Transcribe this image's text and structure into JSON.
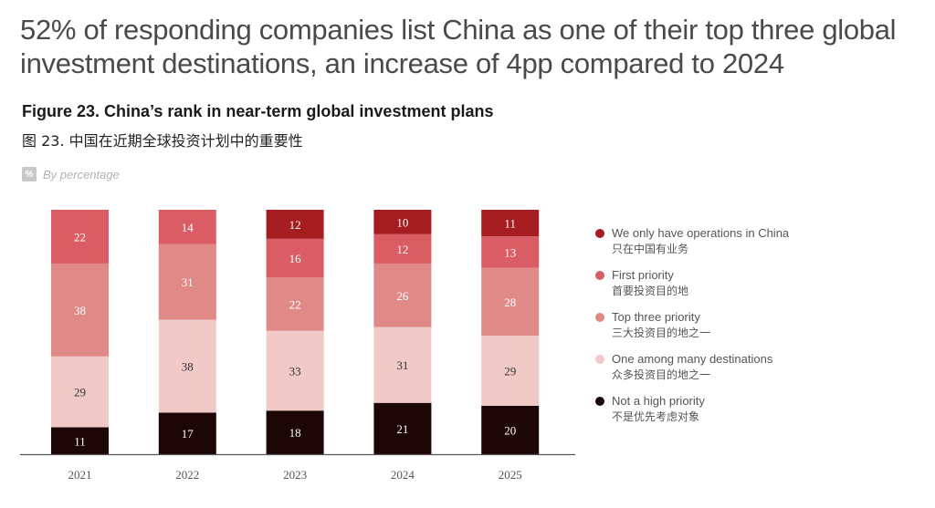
{
  "headline": "52% of responding companies list China as one of their top three global investment destinations, an increase of 4pp compared to 2024",
  "figure": {
    "title": "Figure 23. China’s rank in near-term global investment plans",
    "title_cn": "图 23. 中国在近期全球投资计划中的重要性",
    "unit_icon": "%",
    "unit_label": "By percentage"
  },
  "chart_data": {
    "type": "bar",
    "stacked": true,
    "title": "Figure 23. China’s rank in near-term global investment plans",
    "xlabel": "",
    "ylabel": "",
    "categories": [
      "2021",
      "2022",
      "2023",
      "2024",
      "2025"
    ],
    "ylim": [
      0,
      100
    ],
    "grid": false,
    "legend_position": "right",
    "series": [
      {
        "name": "Not a high priority",
        "name_cn": "不是优先考虑对象",
        "color": "#1c0606",
        "label_color": "#ffffff",
        "values": [
          11,
          17,
          18,
          21,
          20
        ]
      },
      {
        "name": "One among many destinations",
        "name_cn": "众多投资目的地之一",
        "color": "#f1c9c7",
        "label_color": "#333333",
        "values": [
          29,
          38,
          33,
          31,
          29
        ]
      },
      {
        "name": "Top three priority",
        "name_cn": "三大投资目的地之一",
        "color": "#e08a87",
        "label_color": "#ffffff",
        "values": [
          38,
          31,
          22,
          26,
          28
        ]
      },
      {
        "name": "First priority",
        "name_cn": "首要投资目的地",
        "color": "#da5d65",
        "label_color": "#ffffff",
        "values": [
          22,
          14,
          16,
          12,
          13
        ]
      },
      {
        "name": "We only have operations in China",
        "name_cn": "只在中国有业务",
        "color": "#a51d21",
        "label_color": "#ffffff",
        "values": [
          0,
          0,
          12,
          10,
          11
        ]
      }
    ]
  },
  "legend": [
    {
      "en": "We only have operations in China",
      "cn": "只在中国有业务",
      "color": "#a51d21"
    },
    {
      "en": "First priority",
      "cn": "首要投资目的地",
      "color": "#da5d65"
    },
    {
      "en": "Top three priority",
      "cn": "三大投资目的地之一",
      "color": "#e08a87"
    },
    {
      "en": "One among many destinations",
      "cn": "众多投资目的地之一",
      "color": "#f1c9c7"
    },
    {
      "en": "Not a high priority",
      "cn": "不是优先考虑对象",
      "color": "#1c0606"
    }
  ]
}
